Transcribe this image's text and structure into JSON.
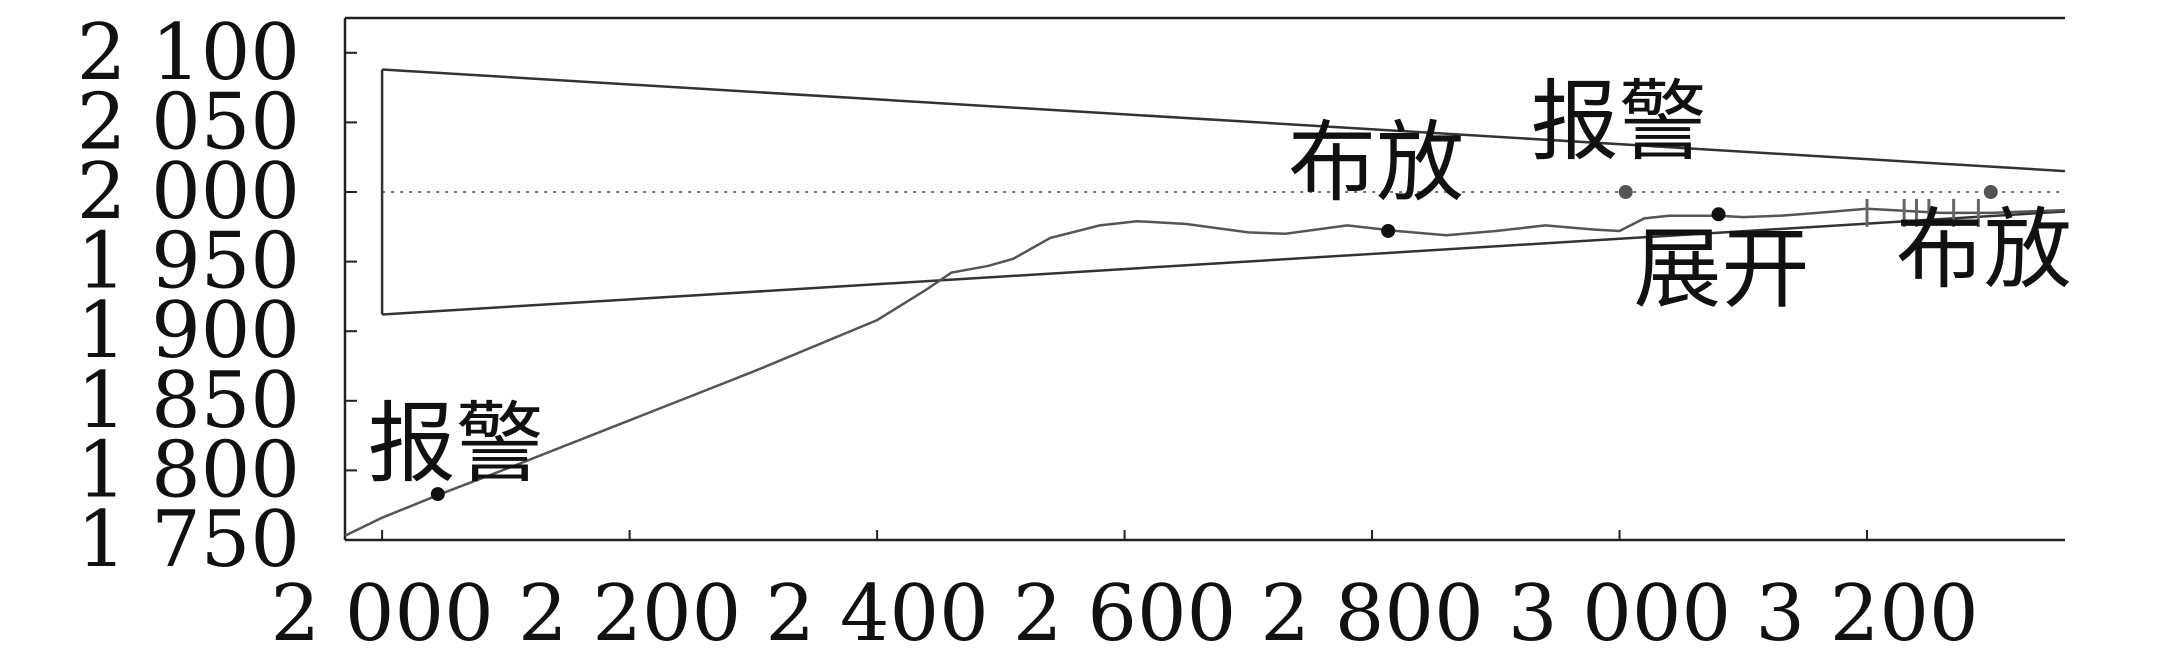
{
  "chart_data": {
    "type": "line",
    "title": "",
    "xlabel": "",
    "ylabel": "",
    "xlim": [
      1970,
      3360
    ],
    "ylim": [
      1750,
      2125
    ],
    "x_ticks": [
      2000,
      2200,
      2400,
      2600,
      2800,
      3000,
      3200
    ],
    "x_tick_labels": [
      "2 000",
      "2 200",
      "2 400",
      "2 600",
      "2 800",
      "3 000",
      "3 200"
    ],
    "y_ticks": [
      1750,
      1800,
      1850,
      1900,
      1950,
      2000,
      2050,
      2100
    ],
    "y_tick_labels": [
      "1 750",
      "1 800",
      "1 850",
      "1 900",
      "1 950",
      "2 000",
      "2 050",
      "2 100"
    ],
    "grid": false,
    "reference_line": {
      "y": 2000,
      "style": "dotted"
    },
    "series": [
      {
        "role": "upper boundary",
        "x": [
          2000,
          3360
        ],
        "y": [
          2088,
          2015
        ]
      },
      {
        "role": "lower boundary",
        "x": [
          2000,
          3360
        ],
        "y": [
          1912,
          1986
        ]
      },
      {
        "role": "left edge",
        "x": [
          2000,
          2000
        ],
        "y": [
          1912,
          2088
        ]
      },
      {
        "role": "trajectory",
        "x": [
          1970,
          2000,
          2050,
          2100,
          2200,
          2300,
          2400,
          2440,
          2460,
          2490,
          2510,
          2540,
          2580,
          2610,
          2650,
          2700,
          2730,
          2780,
          2820,
          2860,
          2900,
          2940,
          2980,
          3000,
          3020,
          3040,
          3080,
          3100,
          3130,
          3160,
          3200,
          3260,
          3300,
          3360
        ],
        "y": [
          1753,
          1766,
          1784,
          1801,
          1836,
          1871,
          1908,
          1930,
          1942,
          1947,
          1952,
          1967,
          1976,
          1979,
          1977,
          1971,
          1970,
          1976,
          1972,
          1969,
          1972,
          1976,
          1973,
          1972,
          1981,
          1983,
          1983,
          1982,
          1983,
          1985,
          1988,
          1985,
          1985,
          1987
        ]
      }
    ],
    "markers": [
      {
        "x": 2045,
        "y": 1783,
        "color": "#111111"
      },
      {
        "x": 2813,
        "y": 1972,
        "color": "#111111"
      },
      {
        "x": 3005,
        "y": 2000,
        "color": "#555555"
      },
      {
        "x": 3080,
        "y": 1984,
        "color": "#111111"
      },
      {
        "x": 3300,
        "y": 2000,
        "color": "#555555"
      }
    ],
    "small_ticks_x": [
      3200,
      3230,
      3240,
      3250,
      3270,
      3290
    ],
    "annotations": [
      {
        "text": "报警",
        "x": 2045,
        "y": 1783
      },
      {
        "text": "布放",
        "x": 2813,
        "y": 1972
      },
      {
        "text": "报警",
        "x": 3005,
        "y": 2000
      },
      {
        "text": "展开",
        "x": 3080,
        "y": 1984
      },
      {
        "text": "布放",
        "x": 3300,
        "y": 2000
      }
    ]
  }
}
